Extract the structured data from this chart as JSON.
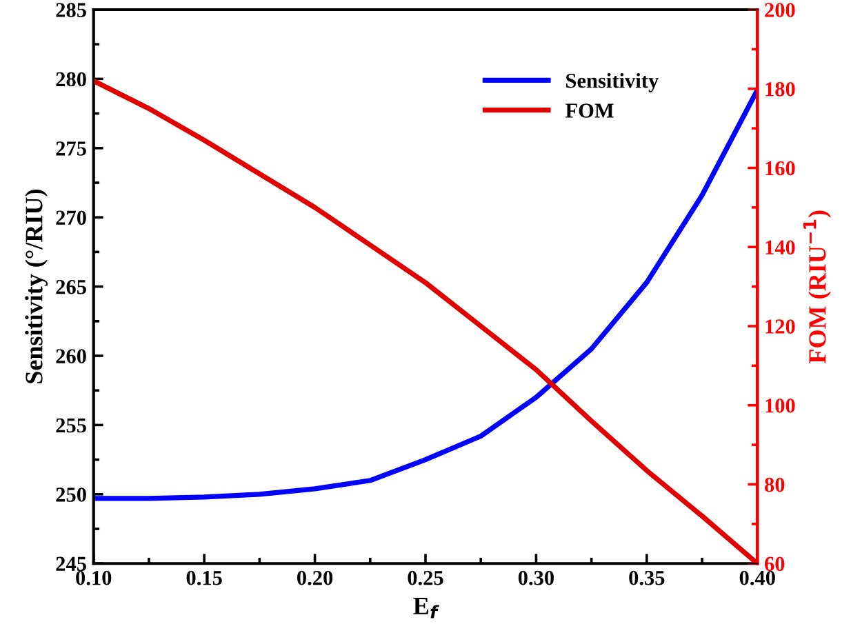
{
  "chart_data": {
    "type": "line",
    "xlabel": "E$_{f}$",
    "ylabel": "Sensitivity (°/RIU)",
    "y2label": "FOM (RIU$^{−1}$)",
    "x": [
      0.1,
      0.125,
      0.15,
      0.175,
      0.2,
      0.225,
      0.25,
      0.275,
      0.3,
      0.325,
      0.35,
      0.375,
      0.4
    ],
    "series": [
      {
        "name": "Sensitivity",
        "color": "#0000ff",
        "values": [
          249.7,
          249.7,
          249.8,
          250.0,
          250.4,
          251.0,
          252.5,
          254.2,
          257.0,
          260.5,
          265.3,
          271.6,
          279.2
        ]
      },
      {
        "name": "FOM",
        "color": "#e00000",
        "axis": "y2",
        "values": [
          182,
          175,
          167,
          158.5,
          150,
          140.5,
          131,
          120,
          109,
          96,
          83.5,
          72,
          60
        ]
      }
    ],
    "xlim": [
      0.1,
      0.4
    ],
    "xticks": [
      {
        "value": 0.1,
        "label": "0.10"
      },
      {
        "value": 0.15,
        "label": "0.15"
      },
      {
        "value": 0.2,
        "label": "0.20"
      },
      {
        "value": 0.25,
        "label": "0.25"
      },
      {
        "value": 0.3,
        "label": "0.30"
      },
      {
        "value": 0.35,
        "label": "0.35"
      },
      {
        "value": 0.4,
        "label": "0.40"
      }
    ],
    "ylim": [
      245,
      285
    ],
    "yticks": [
      245,
      250,
      255,
      260,
      265,
      270,
      275,
      280,
      285
    ],
    "y2lim": [
      60,
      200
    ],
    "y2ticks": [
      60,
      80,
      100,
      120,
      140,
      160,
      180,
      200
    ],
    "legend": "top right",
    "grid": false,
    "marker": "none",
    "line_style": "solid"
  }
}
